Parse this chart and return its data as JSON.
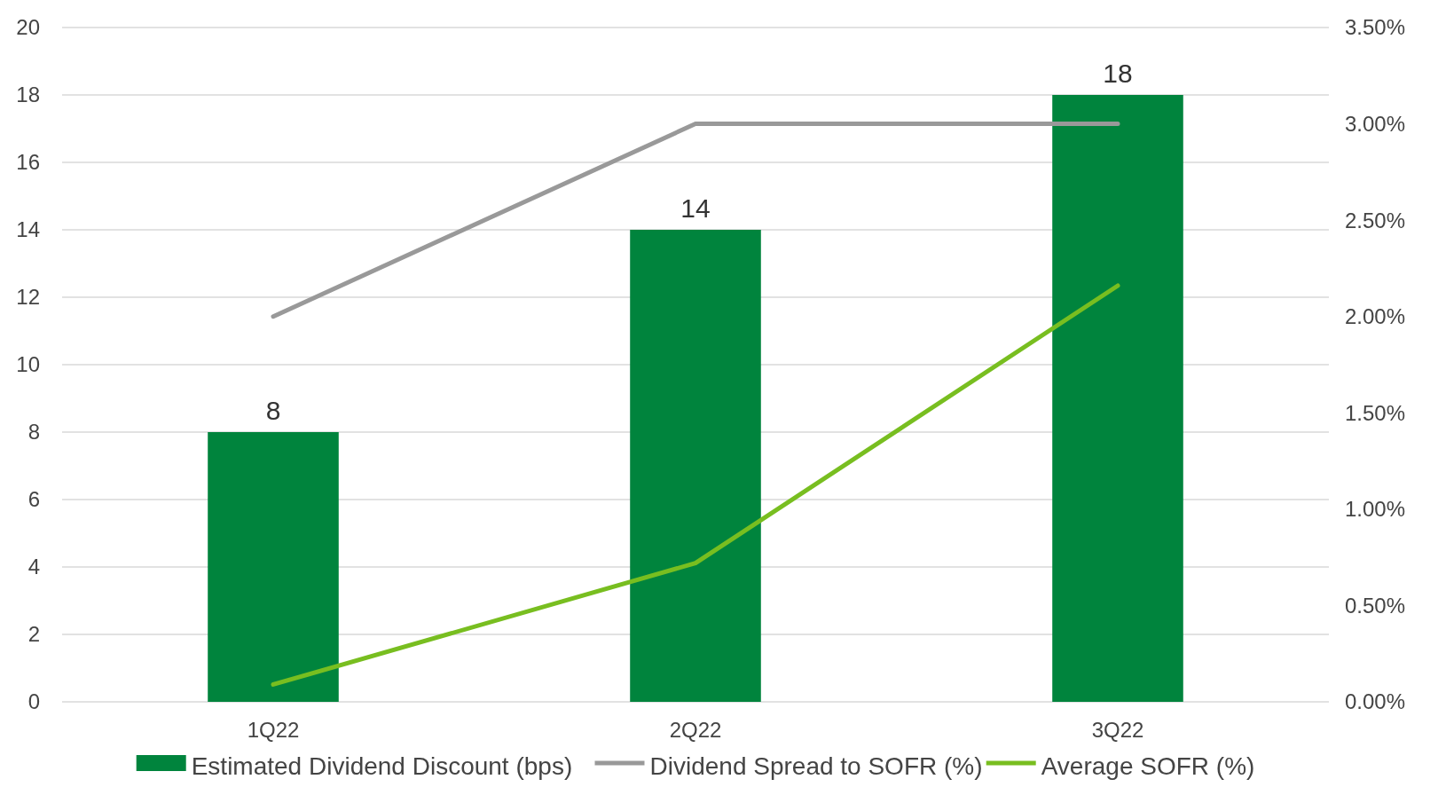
{
  "chart_data": {
    "type": "bar",
    "categories": [
      "1Q22",
      "2Q22",
      "3Q22"
    ],
    "series": [
      {
        "name": "Estimated Dividend Discount (bps)",
        "color": "#00843d",
        "values": [
          8,
          14,
          18
        ],
        "value_labels": [
          "8",
          "14",
          "18"
        ]
      },
      {
        "name": "Dividend Spread to SOFR (%)",
        "type": "line",
        "axis": "y2",
        "color": "#999999",
        "values": [
          2.0,
          3.0,
          3.0
        ]
      },
      {
        "name": "Average SOFR (%)",
        "type": "line",
        "axis": "y2",
        "color": "#78be20",
        "values": [
          0.09,
          0.72,
          2.16
        ]
      }
    ],
    "ylim": [
      0,
      20
    ],
    "yticks": [
      0,
      2,
      4,
      6,
      8,
      10,
      12,
      14,
      16,
      18,
      20
    ],
    "y2lim": [
      0,
      3.5
    ],
    "y2ticks": [
      {
        "value": 0,
        "label": "0.00%"
      },
      {
        "value": 0.5,
        "label": "0.50%"
      },
      {
        "value": 1,
        "label": "1.00%"
      },
      {
        "value": 1.5,
        "label": "1.50%"
      },
      {
        "value": 2,
        "label": "2.00%"
      },
      {
        "value": 2.5,
        "label": "2.50%"
      },
      {
        "value": 3,
        "label": "3.00%"
      },
      {
        "value": 3.5,
        "label": "3.50%"
      }
    ],
    "grid": "y",
    "legend": "bottom"
  }
}
